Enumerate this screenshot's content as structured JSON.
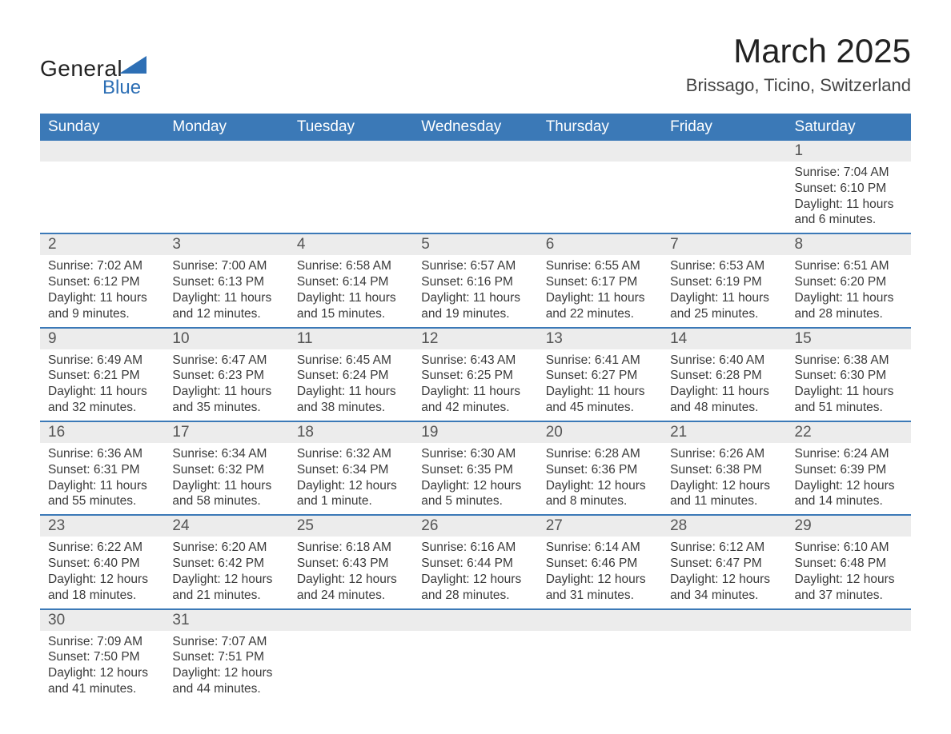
{
  "brand": {
    "name1": "General",
    "name2": "Blue",
    "color": "#2d6fb5"
  },
  "title": "March 2025",
  "location": "Brissago, Ticino, Switzerland",
  "colors": {
    "header_bg": "#3b79b7",
    "header_text": "#ffffff",
    "daynum_bg": "#ececec",
    "row_border": "#3b79b7",
    "body_text": "#3a3a3a",
    "page_bg": "#ffffff"
  },
  "typography": {
    "title_fontsize": 42,
    "location_fontsize": 22,
    "header_cell_fontsize": 19,
    "daynum_fontsize": 19,
    "body_fontsize": 15.5,
    "font_family": "Arial"
  },
  "day_heads": [
    "Sunday",
    "Monday",
    "Tuesday",
    "Wednesday",
    "Thursday",
    "Friday",
    "Saturday"
  ],
  "weeks": [
    [
      null,
      null,
      null,
      null,
      null,
      null,
      {
        "n": "1",
        "sunrise": "7:04 AM",
        "sunset": "6:10 PM",
        "daylight": "11 hours and 6 minutes."
      }
    ],
    [
      {
        "n": "2",
        "sunrise": "7:02 AM",
        "sunset": "6:12 PM",
        "daylight": "11 hours and 9 minutes."
      },
      {
        "n": "3",
        "sunrise": "7:00 AM",
        "sunset": "6:13 PM",
        "daylight": "11 hours and 12 minutes."
      },
      {
        "n": "4",
        "sunrise": "6:58 AM",
        "sunset": "6:14 PM",
        "daylight": "11 hours and 15 minutes."
      },
      {
        "n": "5",
        "sunrise": "6:57 AM",
        "sunset": "6:16 PM",
        "daylight": "11 hours and 19 minutes."
      },
      {
        "n": "6",
        "sunrise": "6:55 AM",
        "sunset": "6:17 PM",
        "daylight": "11 hours and 22 minutes."
      },
      {
        "n": "7",
        "sunrise": "6:53 AM",
        "sunset": "6:19 PM",
        "daylight": "11 hours and 25 minutes."
      },
      {
        "n": "8",
        "sunrise": "6:51 AM",
        "sunset": "6:20 PM",
        "daylight": "11 hours and 28 minutes."
      }
    ],
    [
      {
        "n": "9",
        "sunrise": "6:49 AM",
        "sunset": "6:21 PM",
        "daylight": "11 hours and 32 minutes."
      },
      {
        "n": "10",
        "sunrise": "6:47 AM",
        "sunset": "6:23 PM",
        "daylight": "11 hours and 35 minutes."
      },
      {
        "n": "11",
        "sunrise": "6:45 AM",
        "sunset": "6:24 PM",
        "daylight": "11 hours and 38 minutes."
      },
      {
        "n": "12",
        "sunrise": "6:43 AM",
        "sunset": "6:25 PM",
        "daylight": "11 hours and 42 minutes."
      },
      {
        "n": "13",
        "sunrise": "6:41 AM",
        "sunset": "6:27 PM",
        "daylight": "11 hours and 45 minutes."
      },
      {
        "n": "14",
        "sunrise": "6:40 AM",
        "sunset": "6:28 PM",
        "daylight": "11 hours and 48 minutes."
      },
      {
        "n": "15",
        "sunrise": "6:38 AM",
        "sunset": "6:30 PM",
        "daylight": "11 hours and 51 minutes."
      }
    ],
    [
      {
        "n": "16",
        "sunrise": "6:36 AM",
        "sunset": "6:31 PM",
        "daylight": "11 hours and 55 minutes."
      },
      {
        "n": "17",
        "sunrise": "6:34 AM",
        "sunset": "6:32 PM",
        "daylight": "11 hours and 58 minutes."
      },
      {
        "n": "18",
        "sunrise": "6:32 AM",
        "sunset": "6:34 PM",
        "daylight": "12 hours and 1 minute."
      },
      {
        "n": "19",
        "sunrise": "6:30 AM",
        "sunset": "6:35 PM",
        "daylight": "12 hours and 5 minutes."
      },
      {
        "n": "20",
        "sunrise": "6:28 AM",
        "sunset": "6:36 PM",
        "daylight": "12 hours and 8 minutes."
      },
      {
        "n": "21",
        "sunrise": "6:26 AM",
        "sunset": "6:38 PM",
        "daylight": "12 hours and 11 minutes."
      },
      {
        "n": "22",
        "sunrise": "6:24 AM",
        "sunset": "6:39 PM",
        "daylight": "12 hours and 14 minutes."
      }
    ],
    [
      {
        "n": "23",
        "sunrise": "6:22 AM",
        "sunset": "6:40 PM",
        "daylight": "12 hours and 18 minutes."
      },
      {
        "n": "24",
        "sunrise": "6:20 AM",
        "sunset": "6:42 PM",
        "daylight": "12 hours and 21 minutes."
      },
      {
        "n": "25",
        "sunrise": "6:18 AM",
        "sunset": "6:43 PM",
        "daylight": "12 hours and 24 minutes."
      },
      {
        "n": "26",
        "sunrise": "6:16 AM",
        "sunset": "6:44 PM",
        "daylight": "12 hours and 28 minutes."
      },
      {
        "n": "27",
        "sunrise": "6:14 AM",
        "sunset": "6:46 PM",
        "daylight": "12 hours and 31 minutes."
      },
      {
        "n": "28",
        "sunrise": "6:12 AM",
        "sunset": "6:47 PM",
        "daylight": "12 hours and 34 minutes."
      },
      {
        "n": "29",
        "sunrise": "6:10 AM",
        "sunset": "6:48 PM",
        "daylight": "12 hours and 37 minutes."
      }
    ],
    [
      {
        "n": "30",
        "sunrise": "7:09 AM",
        "sunset": "7:50 PM",
        "daylight": "12 hours and 41 minutes."
      },
      {
        "n": "31",
        "sunrise": "7:07 AM",
        "sunset": "7:51 PM",
        "daylight": "12 hours and 44 minutes."
      },
      null,
      null,
      null,
      null,
      null
    ]
  ],
  "labels": {
    "sunrise": "Sunrise: ",
    "sunset": "Sunset: ",
    "daylight": "Daylight: "
  }
}
